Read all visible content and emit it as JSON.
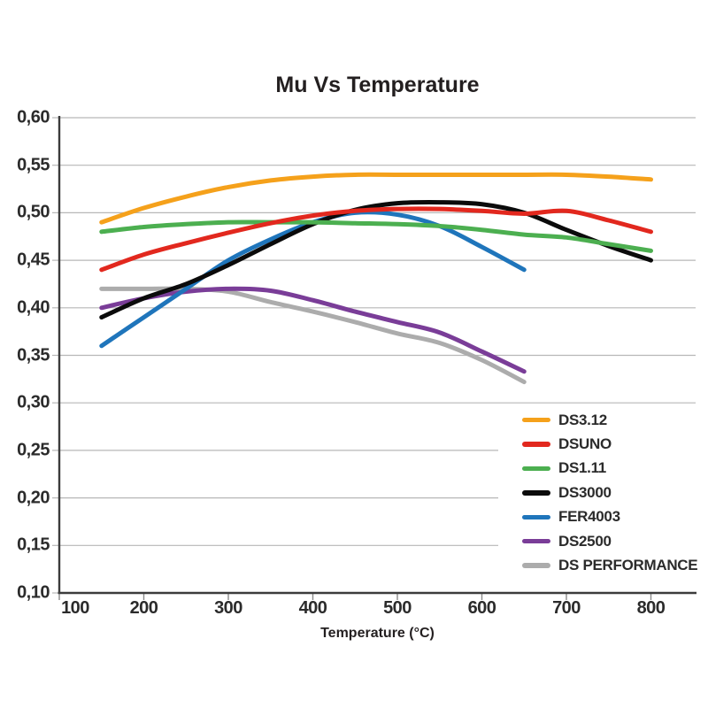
{
  "chart_data": {
    "type": "line",
    "title": "Mu Vs Temperature",
    "xlabel": "Temperature (°C)",
    "ylabel": "",
    "xlim": [
      100,
      852
    ],
    "ylim": [
      0.1,
      0.6
    ],
    "x_ticks": [
      100,
      200,
      300,
      400,
      500,
      600,
      700,
      800
    ],
    "x_tick_labels": [
      "100",
      "200",
      "300",
      "400",
      "500",
      "600",
      "700",
      "800"
    ],
    "y_ticks": [
      0.6,
      0.55,
      0.5,
      0.45,
      0.4,
      0.35,
      0.3,
      0.25,
      0.2,
      0.15,
      0.1
    ],
    "y_tick_labels": [
      "0,60",
      "0,55",
      "0,50",
      "0,45",
      "0,40",
      "0,35",
      "0,30",
      "0,25",
      "0,20",
      "0,15",
      "0,10"
    ],
    "decimal_separator": ",",
    "grid": "horizontal",
    "legend_position": "inside bottom-right",
    "axis_color": "#3c3c3c",
    "gridline_color": "#b7b7b7",
    "series": [
      {
        "name": "DS3.12",
        "color": "#F5A11B",
        "x": [
          150,
          200,
          250,
          300,
          350,
          400,
          450,
          500,
          550,
          600,
          650,
          700,
          750,
          800
        ],
        "y": [
          0.49,
          0.505,
          0.517,
          0.527,
          0.534,
          0.538,
          0.54,
          0.54,
          0.54,
          0.54,
          0.54,
          0.54,
          0.538,
          0.535
        ]
      },
      {
        "name": "DSUNO",
        "color": "#E2281E",
        "x": [
          150,
          200,
          250,
          300,
          350,
          400,
          450,
          500,
          550,
          600,
          650,
          700,
          750,
          800
        ],
        "y": [
          0.44,
          0.456,
          0.468,
          0.479,
          0.489,
          0.497,
          0.502,
          0.504,
          0.504,
          0.502,
          0.499,
          0.502,
          0.492,
          0.48
        ]
      },
      {
        "name": "DS1.11",
        "color": "#4CAF50",
        "x": [
          150,
          200,
          250,
          300,
          350,
          400,
          450,
          500,
          550,
          600,
          650,
          700,
          750,
          800
        ],
        "y": [
          0.48,
          0.485,
          0.488,
          0.49,
          0.49,
          0.49,
          0.489,
          0.488,
          0.486,
          0.482,
          0.477,
          0.474,
          0.467,
          0.46
        ]
      },
      {
        "name": "DS3000",
        "color": "#0b0b0b",
        "x": [
          150,
          200,
          250,
          300,
          350,
          400,
          450,
          500,
          550,
          600,
          650,
          700,
          750,
          800
        ],
        "y": [
          0.39,
          0.41,
          0.425,
          0.445,
          0.467,
          0.488,
          0.503,
          0.51,
          0.511,
          0.509,
          0.5,
          0.482,
          0.465,
          0.45
        ]
      },
      {
        "name": "FER4003",
        "color": "#1F75BB",
        "x": [
          150,
          200,
          250,
          300,
          350,
          400,
          450,
          500,
          550,
          600,
          650
        ],
        "y": [
          0.36,
          0.39,
          0.42,
          0.45,
          0.472,
          0.49,
          0.5,
          0.498,
          0.486,
          0.464,
          0.44
        ]
      },
      {
        "name": "DS2500",
        "color": "#7A3D98",
        "x": [
          150,
          200,
          250,
          300,
          350,
          400,
          450,
          500,
          550,
          600,
          650
        ],
        "y": [
          0.4,
          0.41,
          0.417,
          0.42,
          0.418,
          0.408,
          0.396,
          0.385,
          0.374,
          0.354,
          0.333
        ]
      },
      {
        "name": "DS PERFORMANCE",
        "color": "#ACACAC",
        "x": [
          150,
          200,
          250,
          300,
          350,
          400,
          450,
          500,
          550,
          600,
          650
        ],
        "y": [
          0.42,
          0.42,
          0.42,
          0.417,
          0.406,
          0.396,
          0.385,
          0.373,
          0.363,
          0.345,
          0.322
        ]
      }
    ]
  }
}
